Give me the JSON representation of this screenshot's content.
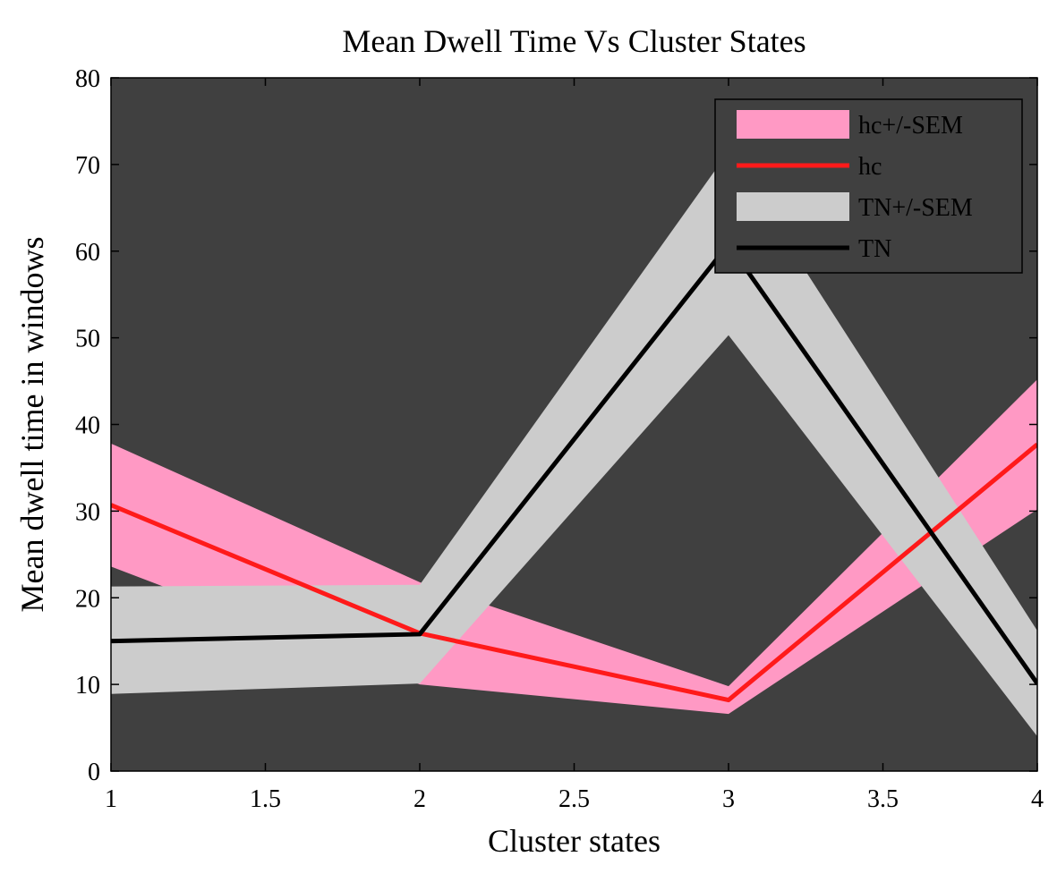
{
  "chart_data": {
    "type": "line",
    "title": "Mean Dwell Time Vs Cluster States",
    "xlabel": "Cluster states",
    "ylabel": "Mean dwell time in windows",
    "xlim": [
      1,
      4
    ],
    "ylim": [
      0,
      80
    ],
    "x_ticks": [
      "1",
      "1.5",
      "2",
      "2.5",
      "3",
      "3.5",
      "4"
    ],
    "x_tick_values": [
      1,
      1.5,
      2,
      2.5,
      3,
      3.5,
      4
    ],
    "y_ticks": [
      "0",
      "10",
      "20",
      "30",
      "40",
      "50",
      "60",
      "70",
      "80"
    ],
    "y_tick_values": [
      0,
      10,
      20,
      30,
      40,
      50,
      60,
      70,
      80
    ],
    "x": [
      1,
      2,
      3,
      4
    ],
    "grid": false,
    "legend_position": "top-right",
    "series": [
      {
        "name": "hc",
        "band_name": "hc+/-SEM",
        "values": [
          30.7,
          15.9,
          8.2,
          37.7
        ],
        "upper": [
          37.8,
          21.8,
          9.8,
          45.2
        ],
        "lower": [
          23.6,
          10.0,
          6.6,
          30.2
        ],
        "line_color": "#ff1a1a",
        "band_color": "#ff99c4"
      },
      {
        "name": "TN",
        "band_name": "TN+/-SEM",
        "values": [
          15.0,
          15.8,
          60.8,
          10.1
        ],
        "upper": [
          21.3,
          21.5,
          71.5,
          16.2
        ],
        "lower": [
          8.9,
          10.1,
          50.3,
          4.0
        ],
        "line_color": "#000000",
        "band_color": "#cccccc"
      }
    ],
    "legend_order": [
      "hc+/-SEM",
      "hc",
      "TN+/-SEM",
      "TN"
    ],
    "colors": {
      "plot_background": "#404040",
      "axis": "#000000"
    }
  }
}
